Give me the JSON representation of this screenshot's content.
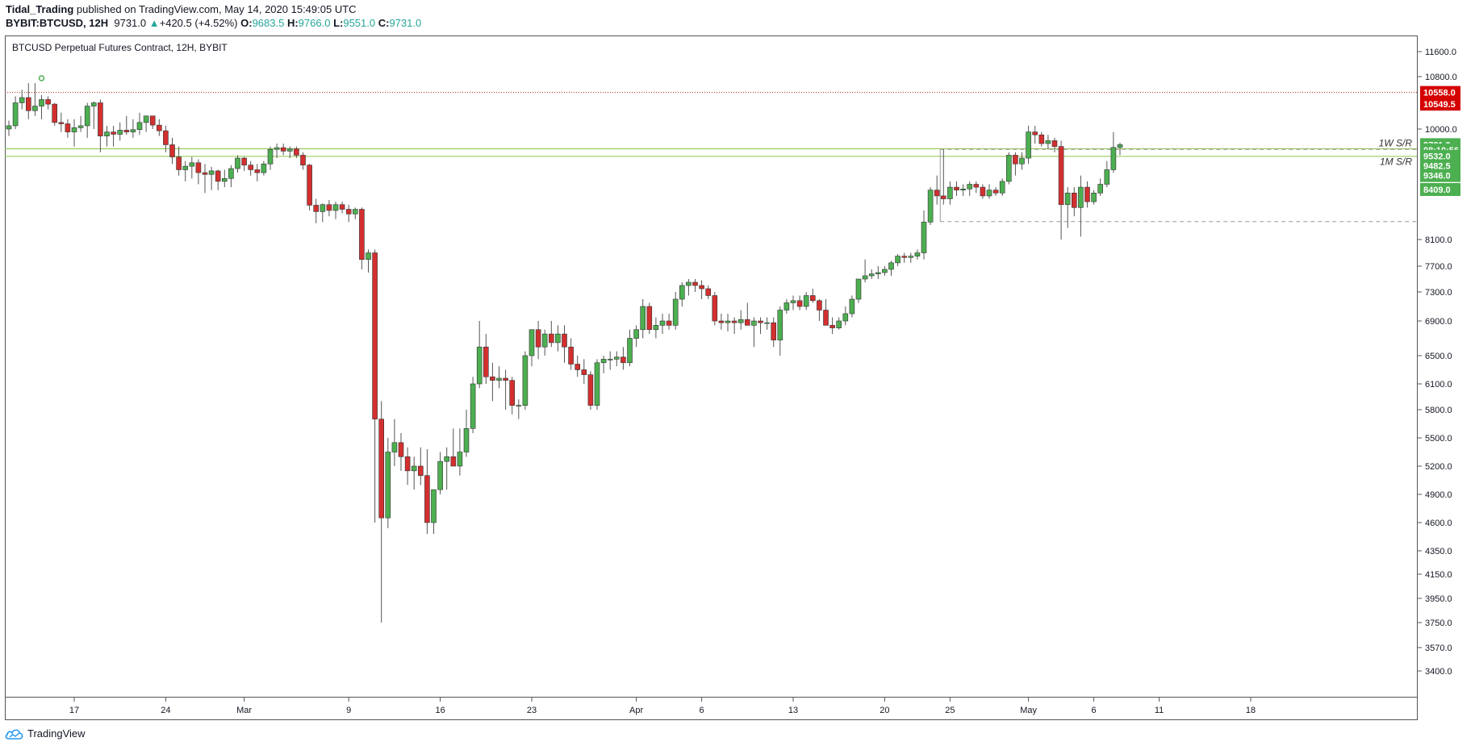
{
  "header": {
    "author": "Tidal_Trading",
    "published_text": "published on TradingView.com, May 14, 2020 15:49:05 UTC",
    "symbol": "BYBIT:BTCUSD, 12H",
    "last": "9731.0",
    "change_arrow": "▲",
    "change": "+420.5 (+4.52%)",
    "o_label": "O:",
    "o_value": "9683.5",
    "h_label": "H:",
    "h_value": "9766.0",
    "l_label": "L:",
    "l_value": "9551.0",
    "c_label": "C:",
    "c_value": "9731.0"
  },
  "footer": {
    "brand": "TradingView",
    "logo_icon": "tradingview-cloud-icon"
  },
  "colors": {
    "up": "#53b987",
    "up_fill": "#4caf50",
    "down": "#eb4d5c",
    "down_fill": "#d32f2f",
    "green_badge": "#4caf50",
    "red_badge": "#d50000",
    "sr_line": "#8bc34a",
    "dashed": "#7cb342"
  },
  "chart_data": {
    "type": "candlestick",
    "title": "BTCUSD Perpetual Futures Contract, 12H, BYBIT",
    "y_ticks": [
      11600.0,
      10800.0,
      10000.0,
      8100.0,
      7700.0,
      7300.0,
      6900.0,
      6500.0,
      6100.0,
      5800.0,
      5500.0,
      5200.0,
      4900.0,
      4600.0,
      4350.0,
      4150.0,
      3950.0,
      3750.0,
      3570.0,
      3400.0
    ],
    "y_tick_labels": [
      "11600.0",
      "10800.0",
      "10000.0",
      "8100.0",
      "7700.0",
      "7300.0",
      "6900.0",
      "6500.0",
      "6100.0",
      "5800.0",
      "5500.0",
      "5200.0",
      "4900.0",
      "4600.0",
      "4350.0",
      "4150.0",
      "3950.0",
      "3750.0",
      "3570.0",
      "3400.0"
    ],
    "x_labels": [
      {
        "label": "17",
        "i": 10
      },
      {
        "label": "24",
        "i": 24
      },
      {
        "label": "Mar",
        "i": 36
      },
      {
        "label": "9",
        "i": 52
      },
      {
        "label": "16",
        "i": 66
      },
      {
        "label": "23",
        "i": 80
      },
      {
        "label": "Apr",
        "i": 96
      },
      {
        "label": "6",
        "i": 106
      },
      {
        "label": "13",
        "i": 120
      },
      {
        "label": "20",
        "i": 134
      },
      {
        "label": "25",
        "i": 144
      },
      {
        "label": "May",
        "i": 156
      },
      {
        "label": "6",
        "i": 166
      },
      {
        "label": "11",
        "i": 176
      },
      {
        "label": "18",
        "i": 190
      }
    ],
    "price_badges": [
      {
        "value": "10558.0",
        "price": 10558,
        "color": "red"
      },
      {
        "value": "10549.5",
        "price": 10380,
        "color": "red"
      },
      {
        "value": "9731.0",
        "price": 9731,
        "color": "green"
      },
      {
        "value": "08:10:56",
        "price": 9640,
        "color": "green"
      },
      {
        "value": "9532.0",
        "price": 9532,
        "color": "green"
      },
      {
        "value": "9482.5",
        "price": 9370,
        "color": "green"
      },
      {
        "value": "9346.0",
        "price": 9200,
        "color": "green"
      },
      {
        "value": "8409.0",
        "price": 8960,
        "color": "green"
      }
    ],
    "levels": [
      {
        "name": "1W S/R",
        "price": 9660,
        "label_price": 9760
      },
      {
        "name": "1M S/R",
        "price": 9530,
        "label_price": 9440
      }
    ],
    "resistance_dotted": 10558,
    "candles": [
      [
        10000,
        10130,
        9880,
        10050
      ],
      [
        10050,
        10500,
        10000,
        10400
      ],
      [
        10400,
        10600,
        10300,
        10480
      ],
      [
        10480,
        10700,
        10150,
        10280
      ],
      [
        10280,
        10700,
        10200,
        10350
      ],
      [
        10350,
        10520,
        10150,
        10450
      ],
      [
        10450,
        10500,
        10300,
        10380
      ],
      [
        10380,
        10400,
        10050,
        10100
      ],
      [
        10100,
        10250,
        9950,
        10080
      ],
      [
        10080,
        10150,
        9850,
        9950
      ],
      [
        9950,
        10150,
        9700,
        10020
      ],
      [
        10020,
        10200,
        9950,
        10050
      ],
      [
        10050,
        10400,
        9850,
        10350
      ],
      [
        10350,
        10420,
        10000,
        10400
      ],
      [
        10400,
        10450,
        9600,
        9880
      ],
      [
        9880,
        10050,
        9700,
        9950
      ],
      [
        9950,
        10050,
        9700,
        9910
      ],
      [
        9910,
        10100,
        9800,
        9980
      ],
      [
        9980,
        10200,
        9900,
        9950
      ],
      [
        9950,
        10150,
        9850,
        9990
      ],
      [
        9990,
        10250,
        9900,
        10100
      ],
      [
        10100,
        10200,
        9950,
        10200
      ],
      [
        10200,
        10200,
        10000,
        10060
      ],
      [
        10060,
        10150,
        9880,
        9970
      ],
      [
        9970,
        10050,
        9600,
        9730
      ],
      [
        9730,
        9850,
        9400,
        9520
      ],
      [
        9520,
        9700,
        9200,
        9300
      ],
      [
        9300,
        9450,
        9100,
        9360
      ],
      [
        9360,
        9520,
        9150,
        9420
      ],
      [
        9420,
        9480,
        9050,
        9250
      ],
      [
        9250,
        9400,
        8900,
        9220
      ],
      [
        9220,
        9350,
        8950,
        9280
      ],
      [
        9280,
        9300,
        8950,
        9100
      ],
      [
        9100,
        9300,
        9000,
        9150
      ],
      [
        9150,
        9380,
        9000,
        9320
      ],
      [
        9320,
        9550,
        9250,
        9500
      ],
      [
        9500,
        9520,
        9280,
        9380
      ],
      [
        9380,
        9450,
        9200,
        9300
      ],
      [
        9300,
        9400,
        9100,
        9250
      ],
      [
        9250,
        9450,
        9200,
        9400
      ],
      [
        9400,
        9700,
        9300,
        9650
      ],
      [
        9650,
        9750,
        9500,
        9680
      ],
      [
        9680,
        9750,
        9550,
        9620
      ],
      [
        9620,
        9700,
        9500,
        9660
      ],
      [
        9660,
        9700,
        9500,
        9550
      ],
      [
        9550,
        9600,
        9300,
        9380
      ],
      [
        9380,
        9400,
        8600,
        8690
      ],
      [
        8690,
        8800,
        8380,
        8580
      ],
      [
        8580,
        8720,
        8400,
        8700
      ],
      [
        8700,
        8780,
        8500,
        8600
      ],
      [
        8600,
        8750,
        8450,
        8700
      ],
      [
        8700,
        8750,
        8550,
        8620
      ],
      [
        8620,
        8700,
        8400,
        8540
      ],
      [
        8540,
        8650,
        8450,
        8620
      ],
      [
        8620,
        8650,
        7650,
        7800
      ],
      [
        7800,
        7950,
        7600,
        7900
      ],
      [
        7900,
        7950,
        4600,
        5700
      ],
      [
        5700,
        5900,
        3750,
        4650
      ],
      [
        4650,
        5500,
        4550,
        5350
      ],
      [
        5350,
        5700,
        5200,
        5450
      ],
      [
        5450,
        5550,
        5150,
        5300
      ],
      [
        5300,
        5400,
        5000,
        5150
      ],
      [
        5150,
        5300,
        4950,
        5200
      ],
      [
        5200,
        5400,
        5000,
        5100
      ],
      [
        5100,
        5380,
        4500,
        4600
      ],
      [
        4600,
        4950,
        4500,
        4950
      ],
      [
        4950,
        5350,
        4900,
        5250
      ],
      [
        5250,
        5400,
        4950,
        5300
      ],
      [
        5300,
        5600,
        5200,
        5200
      ],
      [
        5200,
        5600,
        5100,
        5350
      ],
      [
        5350,
        5800,
        5300,
        5600
      ],
      [
        5600,
        6200,
        5550,
        6100
      ],
      [
        6100,
        6900,
        6050,
        6600
      ],
      [
        6600,
        6750,
        6100,
        6200
      ],
      [
        6200,
        6400,
        5900,
        6150
      ],
      [
        6150,
        6350,
        6050,
        6180
      ],
      [
        6180,
        6300,
        5800,
        6150
      ],
      [
        6150,
        6200,
        5750,
        5850
      ],
      [
        5850,
        5920,
        5700,
        5850
      ],
      [
        5850,
        6550,
        5800,
        6500
      ],
      [
        6500,
        6800,
        6350,
        6800
      ],
      [
        6800,
        6900,
        6450,
        6600
      ],
      [
        6600,
        6800,
        6500,
        6750
      ],
      [
        6750,
        6900,
        6600,
        6650
      ],
      [
        6650,
        6850,
        6550,
        6750
      ],
      [
        6750,
        6850,
        6400,
        6600
      ],
      [
        6600,
        6700,
        6300,
        6380
      ],
      [
        6380,
        6500,
        6200,
        6300
      ],
      [
        6300,
        6450,
        6100,
        6230
      ],
      [
        6230,
        6280,
        5800,
        5850
      ],
      [
        5850,
        6450,
        5800,
        6400
      ],
      [
        6400,
        6500,
        6250,
        6450
      ],
      [
        6450,
        6550,
        6300,
        6450
      ],
      [
        6450,
        6550,
        6350,
        6480
      ],
      [
        6480,
        6600,
        6300,
        6400
      ],
      [
        6400,
        6800,
        6350,
        6700
      ],
      [
        6700,
        6850,
        6600,
        6800
      ],
      [
        6800,
        7200,
        6700,
        7100
      ],
      [
        7100,
        7150,
        6750,
        6800
      ],
      [
        6800,
        6950,
        6700,
        6850
      ],
      [
        6850,
        7000,
        6750,
        6900
      ],
      [
        6900,
        7000,
        6800,
        6850
      ],
      [
        6850,
        7300,
        6800,
        7200
      ],
      [
        7200,
        7450,
        7100,
        7400
      ],
      [
        7400,
        7500,
        7250,
        7450
      ],
      [
        7450,
        7500,
        7300,
        7400
      ],
      [
        7400,
        7480,
        7200,
        7350
      ],
      [
        7350,
        7400,
        7200,
        7250
      ],
      [
        7250,
        7300,
        6850,
        6900
      ],
      [
        6900,
        7000,
        6800,
        6880
      ],
      [
        6880,
        7000,
        6780,
        6900
      ],
      [
        6900,
        6950,
        6750,
        6880
      ],
      [
        6880,
        7050,
        6800,
        6920
      ],
      [
        6920,
        7150,
        6850,
        6850
      ],
      [
        6850,
        6950,
        6600,
        6900
      ],
      [
        6900,
        6950,
        6750,
        6880
      ],
      [
        6880,
        6950,
        6800,
        6880
      ],
      [
        6880,
        6950,
        6600,
        6680
      ],
      [
        6680,
        7100,
        6500,
        7050
      ],
      [
        7050,
        7200,
        7000,
        7150
      ],
      [
        7150,
        7250,
        7050,
        7180
      ],
      [
        7180,
        7250,
        7050,
        7100
      ],
      [
        7100,
        7300,
        7050,
        7250
      ],
      [
        7250,
        7350,
        7150,
        7180
      ],
      [
        7180,
        7200,
        6900,
        7050
      ],
      [
        7050,
        7200,
        6900,
        6850
      ],
      [
        6850,
        6950,
        6750,
        6820
      ],
      [
        6820,
        6950,
        6800,
        6900
      ],
      [
        6900,
        7100,
        6850,
        7000
      ],
      [
        7000,
        7250,
        6950,
        7200
      ],
      [
        7200,
        7500,
        7150,
        7500
      ],
      [
        7500,
        7800,
        7450,
        7550
      ],
      [
        7550,
        7650,
        7500,
        7580
      ],
      [
        7580,
        7700,
        7500,
        7600
      ],
      [
        7600,
        7700,
        7550,
        7650
      ],
      [
        7650,
        7780,
        7550,
        7750
      ],
      [
        7750,
        7880,
        7700,
        7850
      ],
      [
        7850,
        7900,
        7750,
        7830
      ],
      [
        7830,
        7900,
        7750,
        7850
      ],
      [
        7850,
        7950,
        7800,
        7900
      ],
      [
        7900,
        8600,
        7800,
        8400
      ],
      [
        8400,
        9000,
        8350,
        8950
      ],
      [
        8950,
        9200,
        8700,
        8850
      ],
      [
        8850,
        9650,
        8700,
        8800
      ],
      [
        8800,
        9100,
        8700,
        9000
      ],
      [
        9000,
        9100,
        8850,
        8950
      ],
      [
        8950,
        9050,
        8850,
        8970
      ],
      [
        8970,
        9100,
        8850,
        9050
      ],
      [
        9050,
        9100,
        8900,
        9000
      ],
      [
        9000,
        9050,
        8800,
        8850
      ],
      [
        8850,
        9050,
        8800,
        8950
      ],
      [
        8950,
        9000,
        8850,
        8900
      ],
      [
        8900,
        9150,
        8850,
        9100
      ],
      [
        9100,
        9600,
        9050,
        9550
      ],
      [
        9550,
        9600,
        9200,
        9400
      ],
      [
        9400,
        9600,
        9300,
        9500
      ],
      [
        9500,
        10050,
        9400,
        9950
      ],
      [
        9950,
        10050,
        9750,
        9900
      ],
      [
        9900,
        9950,
        9700,
        9750
      ],
      [
        9750,
        9900,
        9650,
        9800
      ],
      [
        9800,
        9850,
        9600,
        9700
      ],
      [
        9700,
        9800,
        8100,
        8700
      ],
      [
        8700,
        9000,
        8300,
        8900
      ],
      [
        8900,
        9000,
        8500,
        8650
      ],
      [
        8650,
        9200,
        8150,
        9000
      ],
      [
        9000,
        9100,
        8650,
        8750
      ],
      [
        8750,
        8950,
        8700,
        8900
      ],
      [
        8900,
        9150,
        8850,
        9050
      ],
      [
        9050,
        9450,
        9000,
        9300
      ],
      [
        9300,
        9950,
        9250,
        9684
      ],
      [
        9684,
        9766,
        9551,
        9731
      ]
    ]
  }
}
